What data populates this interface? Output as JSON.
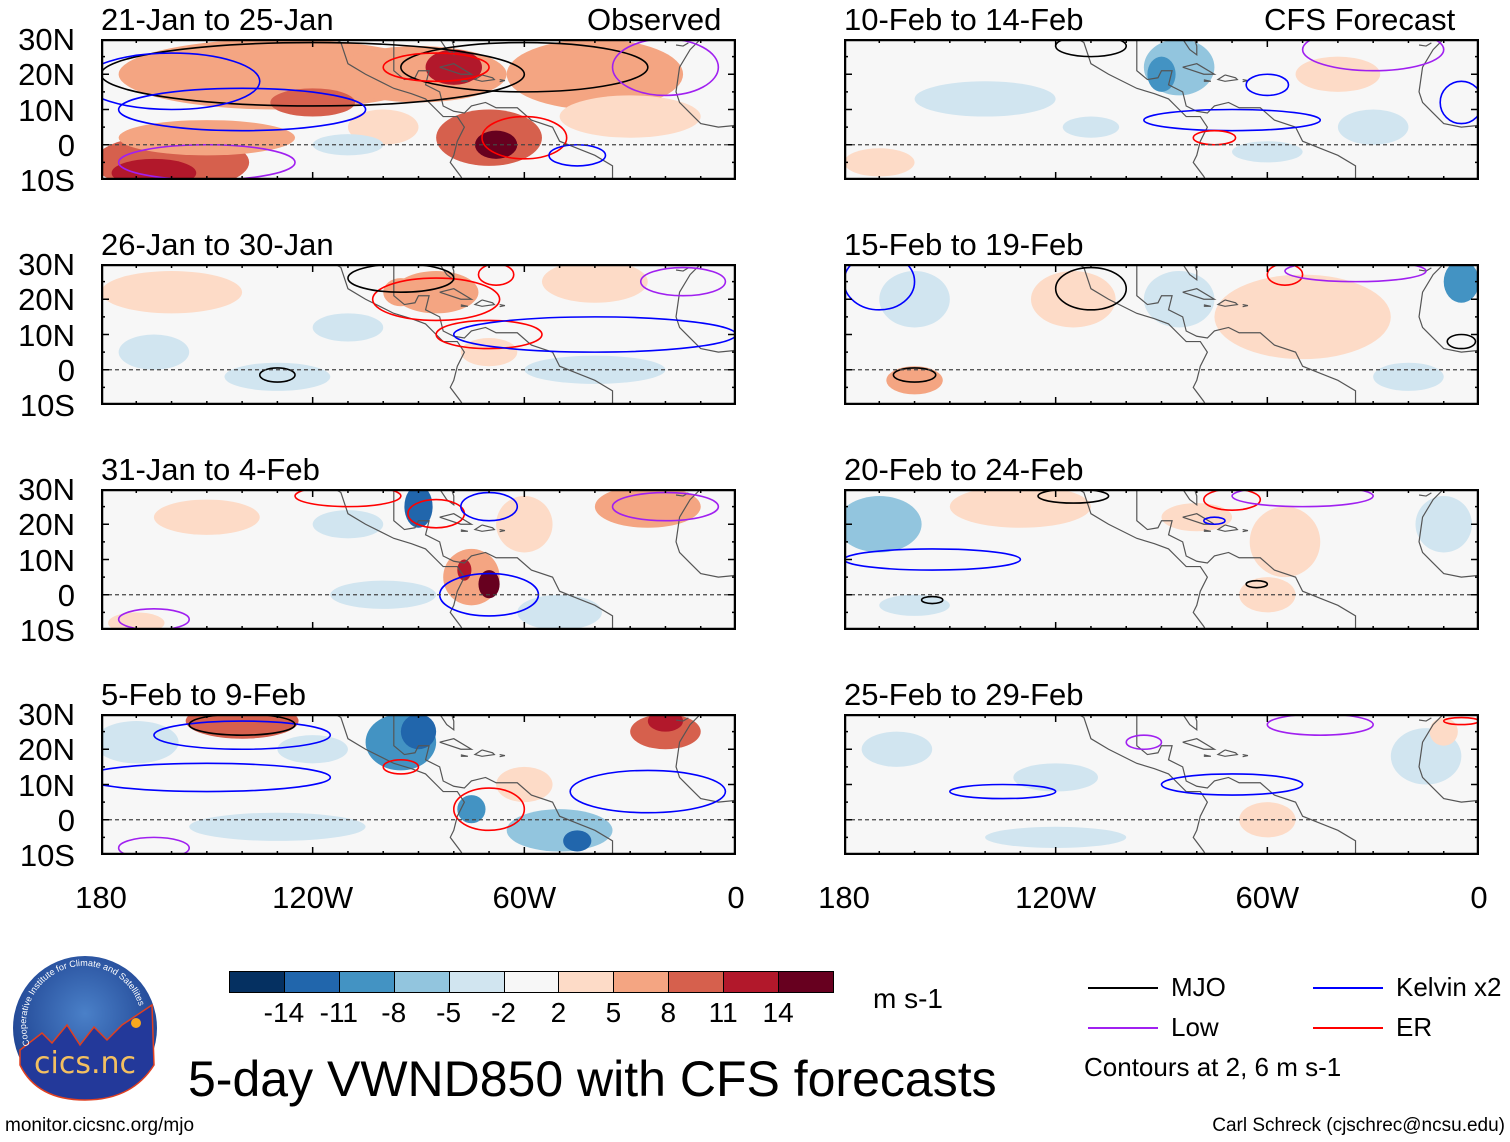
{
  "figure": {
    "title": "5-day VWND850 with CFS forecasts",
    "url": "monitor.cicsnc.org/mjo",
    "credit": "Carl Schreck (cjschrec@ncsu.edu)",
    "logo_text": "cics.nc",
    "logo_ring_text": "Cooperative Institute for Climate and Satellites"
  },
  "columns": {
    "left_label": "Observed",
    "right_label": "CFS Forecast"
  },
  "panels": [
    {
      "title": "21-Jan to 25-Jan",
      "type": "observed"
    },
    {
      "title": "26-Jan to 30-Jan",
      "type": "observed"
    },
    {
      "title": "31-Jan to 4-Feb",
      "type": "observed"
    },
    {
      "title": "5-Feb to 9-Feb",
      "type": "observed"
    },
    {
      "title": "10-Feb to 14-Feb",
      "type": "forecast"
    },
    {
      "title": "15-Feb to 19-Feb",
      "type": "forecast"
    },
    {
      "title": "20-Feb to 24-Feb",
      "type": "forecast"
    },
    {
      "title": "25-Feb to 29-Feb",
      "type": "forecast"
    }
  ],
  "axes": {
    "lat_labels": [
      "30N",
      "20N",
      "10N",
      "0",
      "10S"
    ],
    "lon_labels": [
      "180",
      "120W",
      "60W",
      "0"
    ]
  },
  "colorbar": {
    "units": "m s-1",
    "labels": [
      "-14",
      "-11",
      "-8",
      "-5",
      "-2",
      "2",
      "5",
      "8",
      "11",
      "14"
    ],
    "colors": [
      "#053061",
      "#2166ac",
      "#4393c3",
      "#92c5de",
      "#d1e5f0",
      "#f7f7f7",
      "#fddbc7",
      "#f4a582",
      "#d6604d",
      "#b2182b",
      "#67001f"
    ]
  },
  "legend": {
    "items": [
      {
        "label": "MJO",
        "color": "#000000"
      },
      {
        "label": "Kelvin x2",
        "color": "#0000ff"
      },
      {
        "label": "Low",
        "color": "#a020f0"
      },
      {
        "label": "ER",
        "color": "#ff0000"
      }
    ],
    "note": "Contours at 2, 6 m s-1"
  }
}
